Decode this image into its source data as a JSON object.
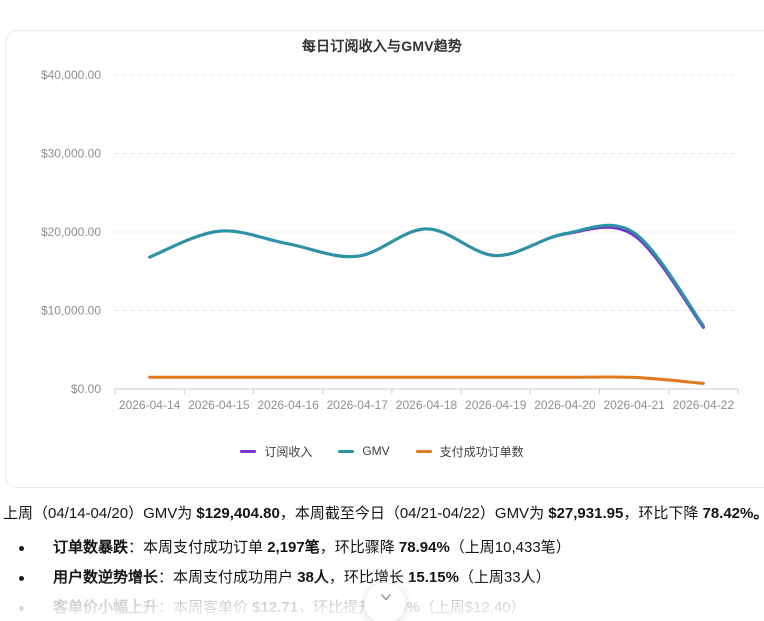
{
  "theme": {
    "accent_purple": "#7b2fd0",
    "accent_teal": "#2a95a3",
    "accent_orange": "#e07a1e",
    "grid_color": "#e3e3e3",
    "axis_color": "#cccccc",
    "axis_label_color": "#8f8f8f"
  },
  "chart_data": {
    "type": "line",
    "title": "每日订阅收入与GMV趋势",
    "x": [
      "2026-04-14",
      "2026-04-15",
      "2026-04-16",
      "2026-04-17",
      "2026-04-18",
      "2026-04-19",
      "2026-04-20",
      "2026-04-21",
      "2026-04-22"
    ],
    "series": [
      {
        "name": "订阅收入",
        "color": "#7b2fd0",
        "values": [
          16800,
          20100,
          18500,
          16900,
          20400,
          17000,
          19750,
          19550,
          7850
        ]
      },
      {
        "name": "GMV",
        "color": "#2a95a3",
        "values": [
          16800,
          20100,
          18500,
          16900,
          20400,
          17000,
          19800,
          19900,
          8032
        ]
      },
      {
        "name": "支付成功订单数",
        "color": "#e07a1e",
        "values": [
          1490,
          1495,
          1490,
          1485,
          1490,
          1490,
          1493,
          1480,
          717
        ]
      }
    ],
    "ylim": [
      0,
      40000
    ],
    "ytick_labels": [
      "$0.00",
      "$10,000.00",
      "$20,000.00",
      "$30,000.00",
      "$40,000.00"
    ],
    "grid": "horizontal-dashed",
    "legend_position": "bottom",
    "xlabel": "",
    "ylabel": ""
  },
  "analysis": {
    "paragraph": [
      {
        "text": "上周（04/14-04/20）GMV为 ",
        "bold": false
      },
      {
        "text": "$129,404.80",
        "bold": true
      },
      {
        "text": "，本周截至今日（04/21-04/22）GMV为 ",
        "bold": false
      },
      {
        "text": "$27,931.95",
        "bold": true
      },
      {
        "text": "，环比下降 ",
        "bold": false
      },
      {
        "text": "78.42%。",
        "bold": true
      }
    ],
    "bullets": [
      {
        "faded": false,
        "segments": [
          {
            "text": "订单数暴跌",
            "bold": true
          },
          {
            "text": "：本周支付成功订单 ",
            "bold": false
          },
          {
            "text": "2,197笔",
            "bold": true
          },
          {
            "text": "，环比骤降 ",
            "bold": false
          },
          {
            "text": "78.94%",
            "bold": true
          },
          {
            "text": "（上周10,433笔）",
            "bold": false
          }
        ]
      },
      {
        "faded": false,
        "segments": [
          {
            "text": "用户数逆势增长",
            "bold": true
          },
          {
            "text": "：本周支付成功用户 ",
            "bold": false
          },
          {
            "text": "38人",
            "bold": true
          },
          {
            "text": "，环比增长 ",
            "bold": false
          },
          {
            "text": "15.15%",
            "bold": true
          },
          {
            "text": "（上周33人）",
            "bold": false
          }
        ]
      },
      {
        "faded": true,
        "segments": [
          {
            "text": "客单价小幅上升",
            "bold": true
          },
          {
            "text": "：本周客单价 ",
            "bold": false
          },
          {
            "text": "$12.71",
            "bold": true
          },
          {
            "text": "，环比提升 ",
            "bold": false
          },
          {
            "text": "2.50%",
            "bold": true
          },
          {
            "text": "（上周$12.40）",
            "bold": false
          }
        ]
      }
    ]
  },
  "scroll_button": {
    "icon": "chevron-down"
  }
}
